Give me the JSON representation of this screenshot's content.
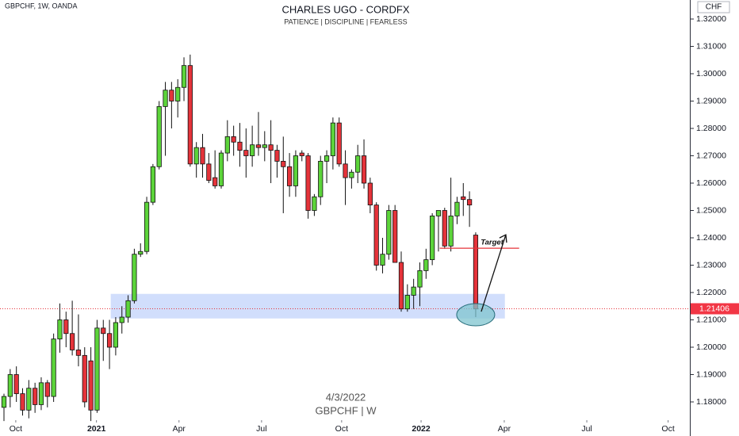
{
  "chart_data": {
    "type": "candlestick",
    "symbol": "GBPCHF, 1W, OANDA",
    "title": "CHARLES UGO - CORDFX",
    "subtitle": "PATIENCE  |  DISCIPLINE  |  FEARLESS",
    "watermark_date": "4/3/2022",
    "watermark_symbol": "GBPCHF  |  W",
    "currency": "CHF",
    "up_color": "#5cd43a",
    "down_color": "#e5333a",
    "candles": [
      [
        1.178,
        1.183,
        1.173,
        1.182
      ],
      [
        1.182,
        1.192,
        1.178,
        1.19
      ],
      [
        1.19,
        1.193,
        1.18,
        1.183
      ],
      [
        1.183,
        1.185,
        1.175,
        1.177
      ],
      [
        1.177,
        1.188,
        1.174,
        1.185
      ],
      [
        1.185,
        1.187,
        1.176,
        1.179
      ],
      [
        1.179,
        1.189,
        1.177,
        1.187
      ],
      [
        1.187,
        1.188,
        1.178,
        1.182
      ],
      [
        1.182,
        1.205,
        1.18,
        1.203
      ],
      [
        1.203,
        1.216,
        1.198,
        1.21
      ],
      [
        1.21,
        1.213,
        1.2,
        1.205
      ],
      [
        1.205,
        1.217,
        1.197,
        1.199
      ],
      [
        1.199,
        1.212,
        1.193,
        1.197
      ],
      [
        1.197,
        1.2,
        1.178,
        1.18
      ],
      [
        1.195,
        1.2,
        1.173,
        1.177
      ],
      [
        1.177,
        1.21,
        1.176,
        1.207
      ],
      [
        1.207,
        1.21,
        1.195,
        1.205
      ],
      [
        1.205,
        1.21,
        1.192,
        1.2
      ],
      [
        1.2,
        1.211,
        1.197,
        1.209
      ],
      [
        1.209,
        1.215,
        1.205,
        1.211
      ],
      [
        1.211,
        1.219,
        1.209,
        1.217
      ],
      [
        1.217,
        1.236,
        1.216,
        1.234
      ],
      [
        1.234,
        1.238,
        1.233,
        1.235
      ],
      [
        1.235,
        1.255,
        1.234,
        1.253
      ],
      [
        1.253,
        1.267,
        1.252,
        1.266
      ],
      [
        1.266,
        1.29,
        1.265,
        1.288
      ],
      [
        1.288,
        1.297,
        1.27,
        1.294
      ],
      [
        1.294,
        1.297,
        1.28,
        1.29
      ],
      [
        1.29,
        1.298,
        1.284,
        1.295
      ],
      [
        1.295,
        1.306,
        1.29,
        1.303
      ],
      [
        1.303,
        1.307,
        1.266,
        1.267
      ],
      [
        1.267,
        1.275,
        1.262,
        1.273
      ],
      [
        1.273,
        1.278,
        1.262,
        1.267
      ],
      [
        1.267,
        1.271,
        1.26,
        1.261
      ],
      [
        1.262,
        1.272,
        1.258,
        1.259
      ],
      [
        1.259,
        1.272,
        1.258,
        1.271
      ],
      [
        1.271,
        1.283,
        1.268,
        1.277
      ],
      [
        1.277,
        1.281,
        1.27,
        1.275
      ],
      [
        1.275,
        1.282,
        1.266,
        1.272
      ],
      [
        1.272,
        1.28,
        1.262,
        1.27
      ],
      [
        1.27,
        1.281,
        1.266,
        1.274
      ],
      [
        1.274,
        1.286,
        1.27,
        1.273
      ],
      [
        1.273,
        1.279,
        1.268,
        1.274
      ],
      [
        1.274,
        1.283,
        1.26,
        1.272
      ],
      [
        1.272,
        1.274,
        1.262,
        1.268
      ],
      [
        1.268,
        1.277,
        1.249,
        1.266
      ],
      [
        1.266,
        1.271,
        1.255,
        1.259
      ],
      [
        1.259,
        1.272,
        1.255,
        1.27
      ],
      [
        1.271,
        1.272,
        1.268,
        1.27
      ],
      [
        1.27,
        1.271,
        1.247,
        1.25
      ],
      [
        1.25,
        1.256,
        1.248,
        1.255
      ],
      [
        1.255,
        1.27,
        1.252,
        1.268
      ],
      [
        1.268,
        1.272,
        1.26,
        1.27
      ],
      [
        1.27,
        1.284,
        1.265,
        1.282
      ],
      [
        1.282,
        1.284,
        1.266,
        1.267
      ],
      [
        1.267,
        1.272,
        1.252,
        1.262
      ],
      [
        1.262,
        1.265,
        1.258,
        1.264
      ],
      [
        1.264,
        1.274,
        1.26,
        1.27
      ],
      [
        1.27,
        1.276,
        1.258,
        1.26
      ],
      [
        1.26,
        1.262,
        1.249,
        1.252
      ],
      [
        1.252,
        1.253,
        1.228,
        1.23
      ],
      [
        1.23,
        1.24,
        1.227,
        1.234
      ],
      [
        1.234,
        1.252,
        1.232,
        1.25
      ],
      [
        1.25,
        1.252,
        1.231,
        1.231
      ],
      [
        1.231,
        1.235,
        1.213,
        1.214
      ],
      [
        1.214,
        1.223,
        1.213,
        1.219
      ],
      [
        1.219,
        1.225,
        1.214,
        1.222
      ],
      [
        1.222,
        1.231,
        1.215,
        1.228
      ],
      [
        1.228,
        1.236,
        1.225,
        1.232
      ],
      [
        1.232,
        1.249,
        1.23,
        1.248
      ],
      [
        1.248,
        1.25,
        1.235,
        1.25
      ],
      [
        1.25,
        1.251,
        1.236,
        1.237
      ],
      [
        1.237,
        1.262,
        1.235,
        1.248
      ],
      [
        1.248,
        1.255,
        1.245,
        1.253
      ],
      [
        1.255,
        1.26,
        1.248,
        1.254
      ],
      [
        1.254,
        1.257,
        1.244,
        1.252
      ],
      [
        1.241,
        1.242,
        1.211,
        1.214
      ]
    ],
    "xlim": [
      -0.64,
      110.5
    ],
    "xticks": [
      {
        "value": 1.9,
        "label": "Oct"
      },
      {
        "value": 14.9,
        "label": "2021"
      },
      {
        "value": 28.2,
        "label": "Apr"
      },
      {
        "value": 41.5,
        "label": "Jul"
      },
      {
        "value": 54.4,
        "label": "Oct"
      },
      {
        "value": 67.2,
        "label": "2022"
      },
      {
        "value": 80.6,
        "label": "Apr"
      },
      {
        "value": 93.9,
        "label": "Jul"
      },
      {
        "value": 107,
        "label": "Oct"
      }
    ],
    "ylim": [
      1.17333,
      1.32696
    ],
    "yticks": [
      {
        "value": 1.18,
        "label": "1.18000"
      },
      {
        "value": 1.19,
        "label": "1.19000"
      },
      {
        "value": 1.2,
        "label": "1.20000"
      },
      {
        "value": 1.21,
        "label": "1.21000"
      },
      {
        "value": 1.22,
        "label": "1.22000"
      },
      {
        "value": 1.23,
        "label": "1.23000"
      },
      {
        "value": 1.24,
        "label": "1.24000"
      },
      {
        "value": 1.25,
        "label": "1.25000"
      },
      {
        "value": 1.26,
        "label": "1.26000"
      },
      {
        "value": 1.27,
        "label": "1.27000"
      },
      {
        "value": 1.28,
        "label": "1.28000"
      },
      {
        "value": 1.29,
        "label": "1.29000"
      },
      {
        "value": 1.3,
        "label": "1.30000"
      },
      {
        "value": 1.31,
        "label": "1.31000"
      },
      {
        "value": 1.32,
        "label": "1.32000"
      }
    ],
    "last_price": {
      "value": 1.21406,
      "label": "1.21406"
    },
    "zone": {
      "range": [
        1.2105,
        1.2195
      ],
      "x_range": [
        17.2,
        80.7
      ]
    },
    "target": {
      "label": "Target",
      "value": 1.2362,
      "x_range": [
        70.2,
        83
      ]
    }
  }
}
